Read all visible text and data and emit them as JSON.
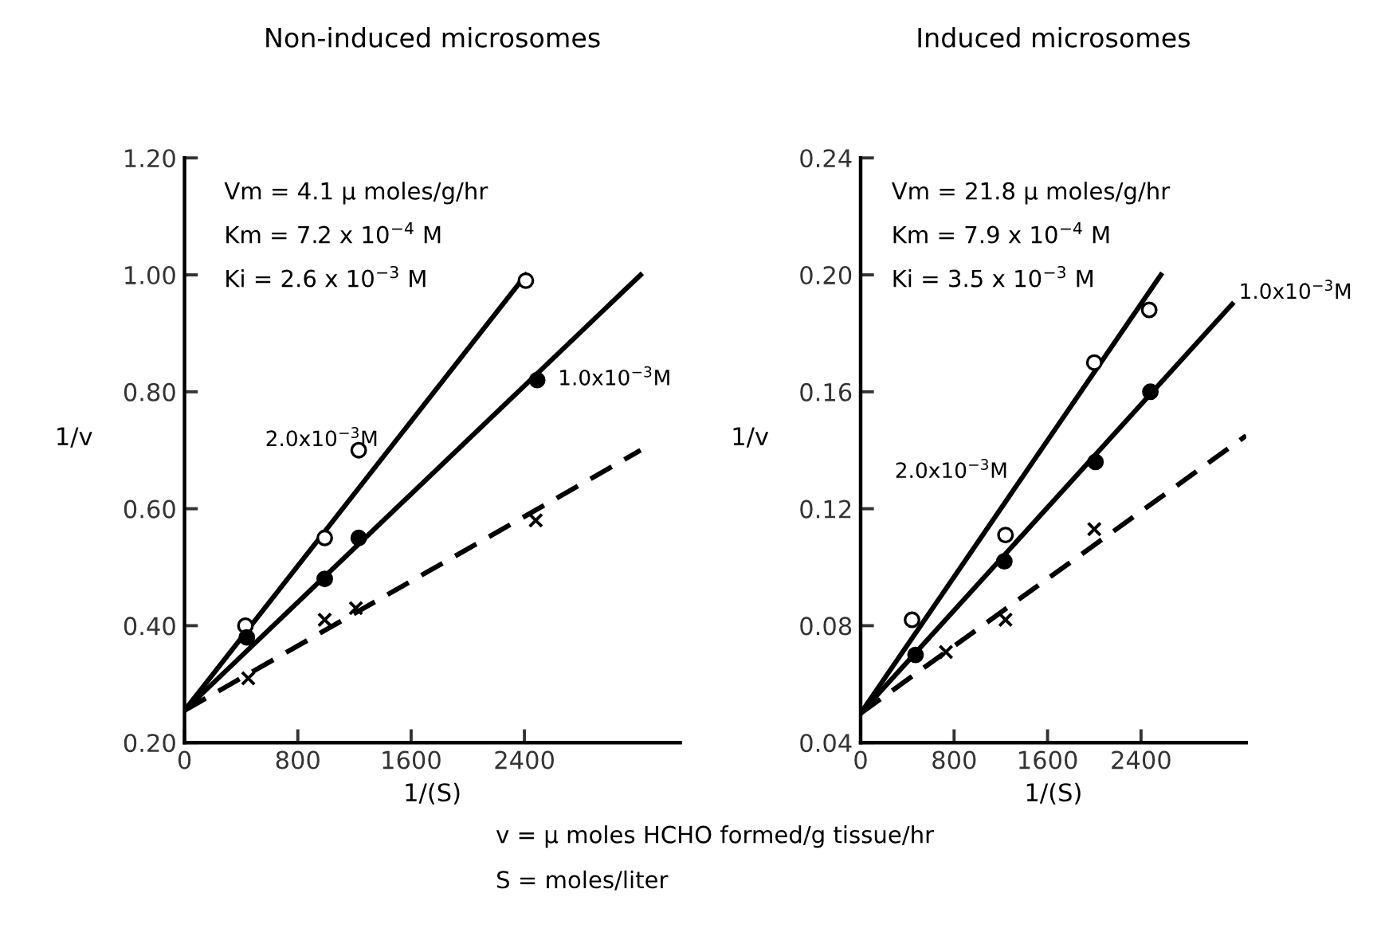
{
  "chart_data": [
    {
      "type": "line",
      "title": "Non-induced microsomes",
      "xlabel": "1/(S)",
      "ylabel": "1/v",
      "xlim": [
        0,
        3500
      ],
      "ylim": [
        0.2,
        1.2
      ],
      "xticks": [
        0,
        800,
        1600,
        2400
      ],
      "yticks": [
        {
          "value": 0.2,
          "label": "0.20"
        },
        {
          "value": 0.4,
          "label": "0.40"
        },
        {
          "value": 0.6,
          "label": "0.60"
        },
        {
          "value": 0.8,
          "label": "0.80"
        },
        {
          "value": 1.0,
          "label": "1.00"
        },
        {
          "value": 1.2,
          "label": "1.20"
        }
      ],
      "grid": false,
      "legend": false,
      "annotations": [
        "Vm = 4.1 μ moles/g/hr",
        "Km = 7.2 x 10$^{−4}$ M",
        "Ki = 2.6 x 10$^{−3}$ M"
      ],
      "series": [
        {
          "name": "2.0x10$^{−3}$M",
          "color": "#000000",
          "line_style": "solid",
          "x": [
            0,
            2410
          ],
          "values": [
            0.255,
            1.0
          ]
        },
        {
          "name": "1.0x10$^{−3}$M",
          "color": "#000000",
          "line_style": "solid",
          "x": [
            0,
            3220
          ],
          "values": [
            0.255,
            1.0
          ]
        },
        {
          "color": "#000000",
          "line_style": "dashed",
          "x": [
            0,
            3220
          ],
          "values": [
            0.255,
            0.7
          ]
        },
        {
          "type": "scatter",
          "color": "#ffffff",
          "marker": "circle",
          "x": [
            430,
            990,
            1230,
            2410
          ],
          "values": [
            0.4,
            0.55,
            0.7,
            0.99
          ]
        },
        {
          "type": "scatter",
          "color": "#000000",
          "marker": "circle",
          "x": [
            440,
            990,
            1230,
            2490
          ],
          "values": [
            0.38,
            0.48,
            0.55,
            0.82
          ]
        },
        {
          "type": "scatter",
          "color": "#000000",
          "marker": "cross",
          "x": [
            450,
            990,
            1210,
            2480
          ],
          "values": [
            0.31,
            0.41,
            0.43,
            0.58
          ]
        }
      ]
    },
    {
      "type": "line",
      "title": "Induced microsomes",
      "xlabel": "1/(S)",
      "ylabel": "1/v",
      "xlim": [
        0,
        3300
      ],
      "ylim": [
        0.04,
        0.24
      ],
      "xticks": [
        0,
        800,
        1600,
        2400
      ],
      "yticks": [
        {
          "value": 0.04,
          "label": "0.04"
        },
        {
          "value": 0.08,
          "label": "0.08"
        },
        {
          "value": 0.12,
          "label": "0.12"
        },
        {
          "value": 0.16,
          "label": "0.16"
        },
        {
          "value": 0.2,
          "label": "0.20"
        },
        {
          "value": 0.24,
          "label": "0.24"
        }
      ],
      "grid": false,
      "legend": false,
      "annotations": [
        "Vm = 21.8 μ moles/g/hr",
        "Km = 7.9 x 10$^{−4}$ M",
        "Ki = 3.5 x 10$^{−3}$ M",
        "v = μ moles HCHO formed/g tissue/hr",
        "S = moles/liter"
      ],
      "series": [
        {
          "name": "2.0x10$^{−3}$M",
          "color": "#000000",
          "line_style": "solid",
          "x": [
            0,
            2570
          ],
          "values": [
            0.05,
            0.2
          ]
        },
        {
          "name": "1.0x10$^{−3}$M",
          "color": "#000000",
          "line_style": "solid",
          "x": [
            0,
            3180
          ],
          "values": [
            0.05,
            0.19
          ]
        },
        {
          "color": "#000000",
          "line_style": "dashed",
          "x": [
            0,
            3300
          ],
          "values": [
            0.05,
            0.145
          ]
        },
        {
          "type": "scatter",
          "color": "#ffffff",
          "marker": "circle",
          "x": [
            440,
            1240,
            2000,
            2470
          ],
          "values": [
            0.082,
            0.111,
            0.17,
            0.188
          ]
        },
        {
          "type": "scatter",
          "color": "#000000",
          "marker": "circle",
          "x": [
            470,
            1230,
            2010,
            2480
          ],
          "values": [
            0.07,
            0.102,
            0.136,
            0.16
          ]
        },
        {
          "type": "scatter",
          "color": "#000000",
          "marker": "cross",
          "x": [
            730,
            1240,
            2000
          ],
          "values": [
            0.071,
            0.082,
            0.113
          ]
        }
      ]
    }
  ]
}
